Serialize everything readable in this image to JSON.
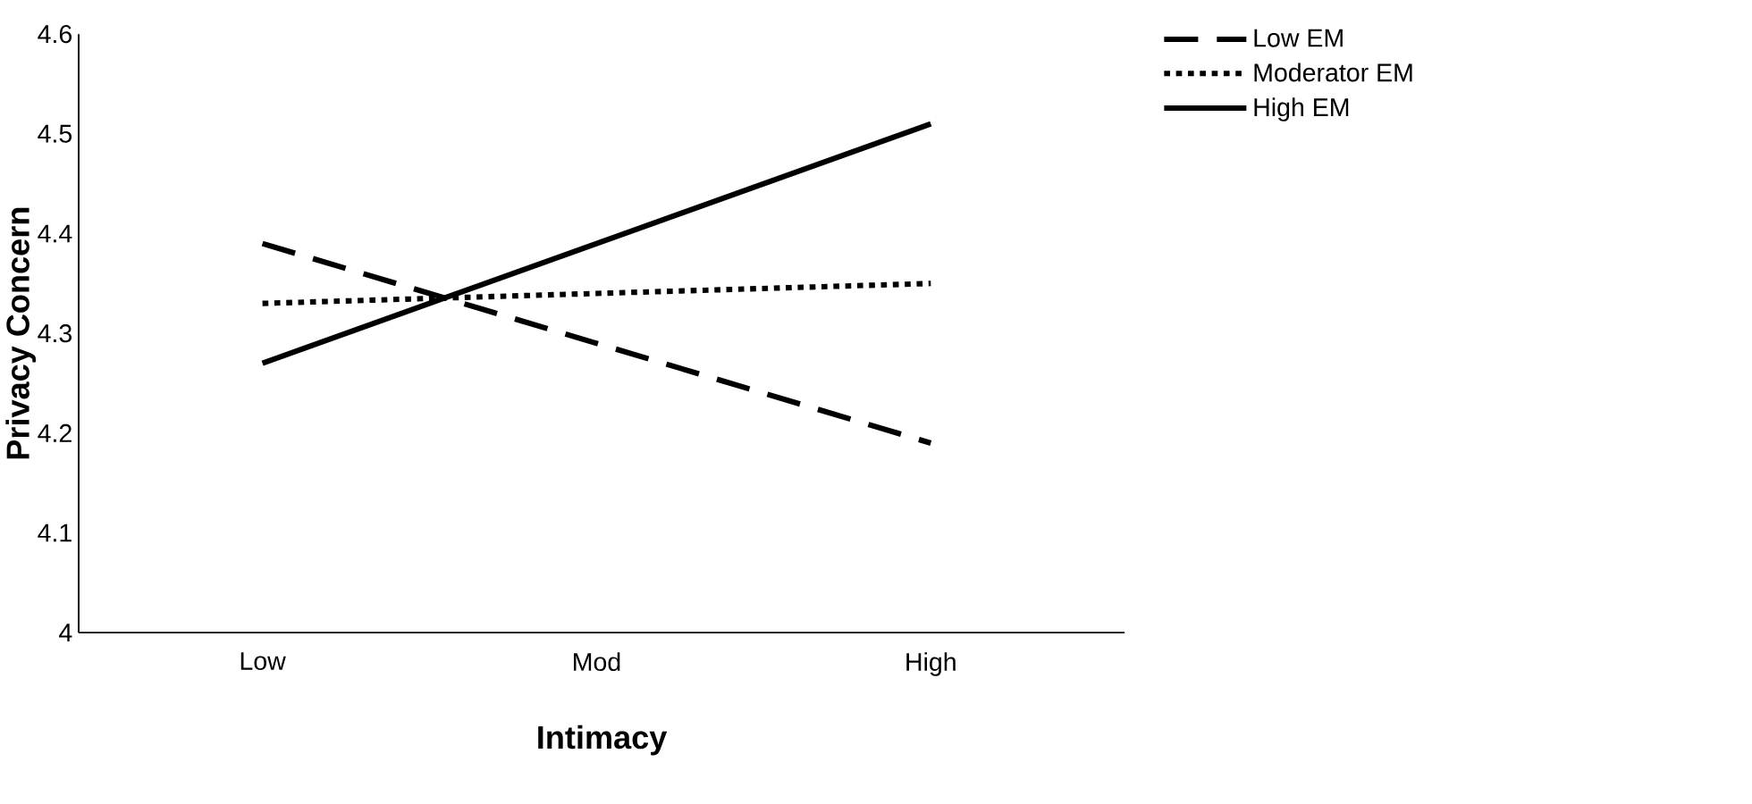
{
  "chart_data": {
    "type": "line",
    "xlabel": "Intimacy",
    "ylabel": "Privacy Concern",
    "categories": [
      "Low",
      "Mod",
      "High"
    ],
    "series": [
      {
        "name": "Low EM",
        "color": "#000000",
        "line_style": "dashed",
        "values": [
          4.39,
          4.29,
          4.19
        ]
      },
      {
        "name": "Moderator EM",
        "color": "#000000",
        "line_style": "dotted",
        "values": [
          4.33,
          4.34,
          4.35
        ]
      },
      {
        "name": "High EM",
        "color": "#000000",
        "line_style": "solid",
        "values": [
          4.27,
          4.39,
          4.51
        ]
      }
    ],
    "ylim": [
      4,
      4.6
    ],
    "yticks": [
      4,
      4.1,
      4.2,
      4.3,
      4.4,
      4.5,
      4.6
    ],
    "grid": false,
    "legend": "top right",
    "marker": "none"
  }
}
